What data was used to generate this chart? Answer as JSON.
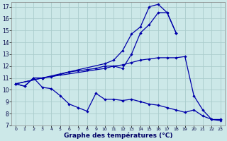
{
  "title": "Graphe des températures (°C)",
  "bg_color": "#cce8e8",
  "grid_color": "#aacccc",
  "line_color": "#0000aa",
  "xlim": [
    -0.5,
    23.5
  ],
  "ylim": [
    7,
    17.4
  ],
  "yticks": [
    7,
    8,
    9,
    10,
    11,
    12,
    13,
    14,
    15,
    16,
    17
  ],
  "xticks": [
    0,
    1,
    2,
    3,
    4,
    5,
    6,
    7,
    8,
    9,
    10,
    11,
    12,
    13,
    14,
    15,
    16,
    17,
    18,
    19,
    20,
    21,
    22,
    23
  ],
  "line_top_x": [
    0,
    3,
    10,
    11,
    12,
    13,
    14,
    15,
    16,
    17,
    18
  ],
  "line_top_y": [
    10.5,
    11.0,
    12.2,
    12.5,
    13.3,
    14.7,
    15.3,
    17.0,
    17.2,
    16.5,
    14.8
  ],
  "line_mid_x": [
    0,
    3,
    10,
    11,
    12,
    13,
    14,
    15,
    16,
    17,
    18
  ],
  "line_mid_y": [
    10.5,
    11.0,
    11.8,
    12.0,
    11.8,
    13.0,
    14.8,
    15.5,
    16.5,
    16.5,
    14.8
  ],
  "line_rise_x": [
    0,
    1,
    2,
    3,
    4,
    5,
    6,
    7,
    8,
    9,
    10,
    11,
    12,
    13,
    14,
    15,
    16,
    17,
    18,
    19,
    20,
    21,
    22,
    23
  ],
  "line_rise_y": [
    10.5,
    10.3,
    11.0,
    11.0,
    11.1,
    11.3,
    11.5,
    11.6,
    11.7,
    11.8,
    12.0,
    12.0,
    12.1,
    12.3,
    12.5,
    12.6,
    12.7,
    12.7,
    12.7,
    12.8,
    9.5,
    8.3,
    7.5,
    7.5
  ],
  "line_bot_x": [
    0,
    1,
    2,
    3,
    4,
    5,
    6,
    7,
    8,
    9,
    10,
    11,
    12,
    13,
    14,
    15,
    16,
    17,
    18,
    19,
    20,
    21,
    22,
    23
  ],
  "line_bot_y": [
    10.5,
    10.3,
    11.0,
    10.2,
    10.1,
    9.5,
    8.8,
    8.5,
    8.2,
    9.7,
    9.2,
    9.2,
    9.1,
    9.2,
    9.0,
    8.8,
    8.7,
    8.5,
    8.3,
    8.1,
    8.3,
    7.8,
    7.5,
    7.4
  ]
}
